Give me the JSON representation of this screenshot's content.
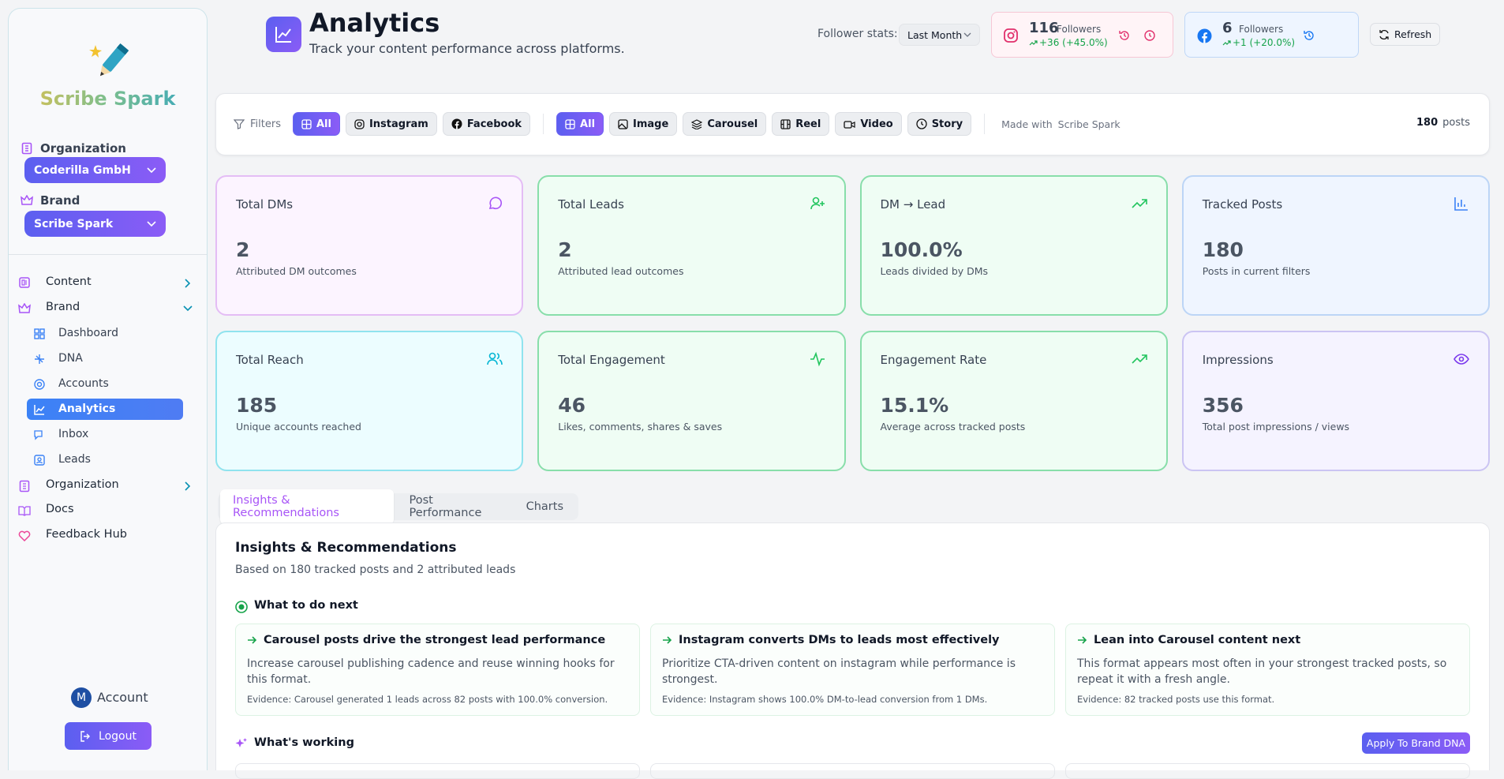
{
  "sidebar": {
    "app_name": "Scribe Spark",
    "organization_label": "Organization",
    "organization_value": "Coderilla GmbH",
    "brand_label": "Brand",
    "brand_value": "Scribe Spark",
    "nav": [
      {
        "label": "Content"
      },
      {
        "label": "Brand",
        "items": [
          "Dashboard",
          "DNA",
          "Accounts",
          "Analytics",
          "Inbox",
          "Leads"
        ]
      },
      {
        "label": "Organization"
      },
      {
        "label": "Docs"
      },
      {
        "label": "Feedback Hub"
      }
    ],
    "avatar": "M",
    "account": "Account",
    "logout": "Logout"
  },
  "header": {
    "title": "Analytics",
    "subtitle": "Track your content performance across platforms.",
    "follower_stats_label": "Follower stats:",
    "period": "Last Month",
    "instagram": {
      "count": "116",
      "label": "Followers",
      "change": "+36 (+45.0%)"
    },
    "facebook": {
      "count": "6",
      "label": "Followers",
      "change": "+1 (+20.0%)"
    },
    "refresh": "Refresh"
  },
  "filters": {
    "label": "Filters",
    "platforms": [
      "All",
      "Instagram",
      "Facebook"
    ],
    "types": [
      "All",
      "Image",
      "Carousel",
      "Reel",
      "Video",
      "Story"
    ],
    "made_with": "Made with",
    "made_with_brand": "Scribe Spark",
    "count": "180",
    "count_unit": "posts"
  },
  "stats": [
    {
      "title": "Total DMs",
      "value": "2",
      "caption": "Attributed DM outcomes"
    },
    {
      "title": "Total Leads",
      "value": "2",
      "caption": "Attributed lead outcomes"
    },
    {
      "title": "DM → Lead",
      "value": "100.0%",
      "caption": "Leads divided by DMs"
    },
    {
      "title": "Tracked Posts",
      "value": "180",
      "caption": "Posts in current filters"
    },
    {
      "title": "Total Reach",
      "value": "185",
      "caption": "Unique accounts reached"
    },
    {
      "title": "Total Engagement",
      "value": "46",
      "caption": "Likes, comments, shares & saves"
    },
    {
      "title": "Engagement Rate",
      "value": "15.1%",
      "caption": "Average across tracked posts"
    },
    {
      "title": "Impressions",
      "value": "356",
      "caption": "Total post impressions / views"
    }
  ],
  "tabs": [
    "Insights & Recommendations",
    "Post Performance",
    "Charts"
  ],
  "insights": {
    "title": "Insights & Recommendations",
    "subtitle": "Based on 180 tracked posts and 2 attributed leads",
    "next_title": "What to do next",
    "recommendations": [
      {
        "title": "Carousel posts drive the strongest lead performance",
        "body": "Increase carousel publishing cadence and reuse winning hooks for this format.",
        "evidence": "Evidence: Carousel generated 1 leads across 82 posts with 100.0% conversion."
      },
      {
        "title": "Instagram converts DMs to leads most effectively",
        "body": "Prioritize CTA-driven content on instagram while performance is strongest.",
        "evidence": "Evidence: Instagram shows 100.0% DM-to-lead conversion from 1 DMs."
      },
      {
        "title": "Lean into Carousel content next",
        "body": "This format appears most often in your strongest tracked posts, so repeat it with a fresh angle.",
        "evidence": "Evidence: 82 tracked posts use this format."
      }
    ],
    "working_title": "What's working",
    "apply": "Apply To Brand DNA"
  }
}
